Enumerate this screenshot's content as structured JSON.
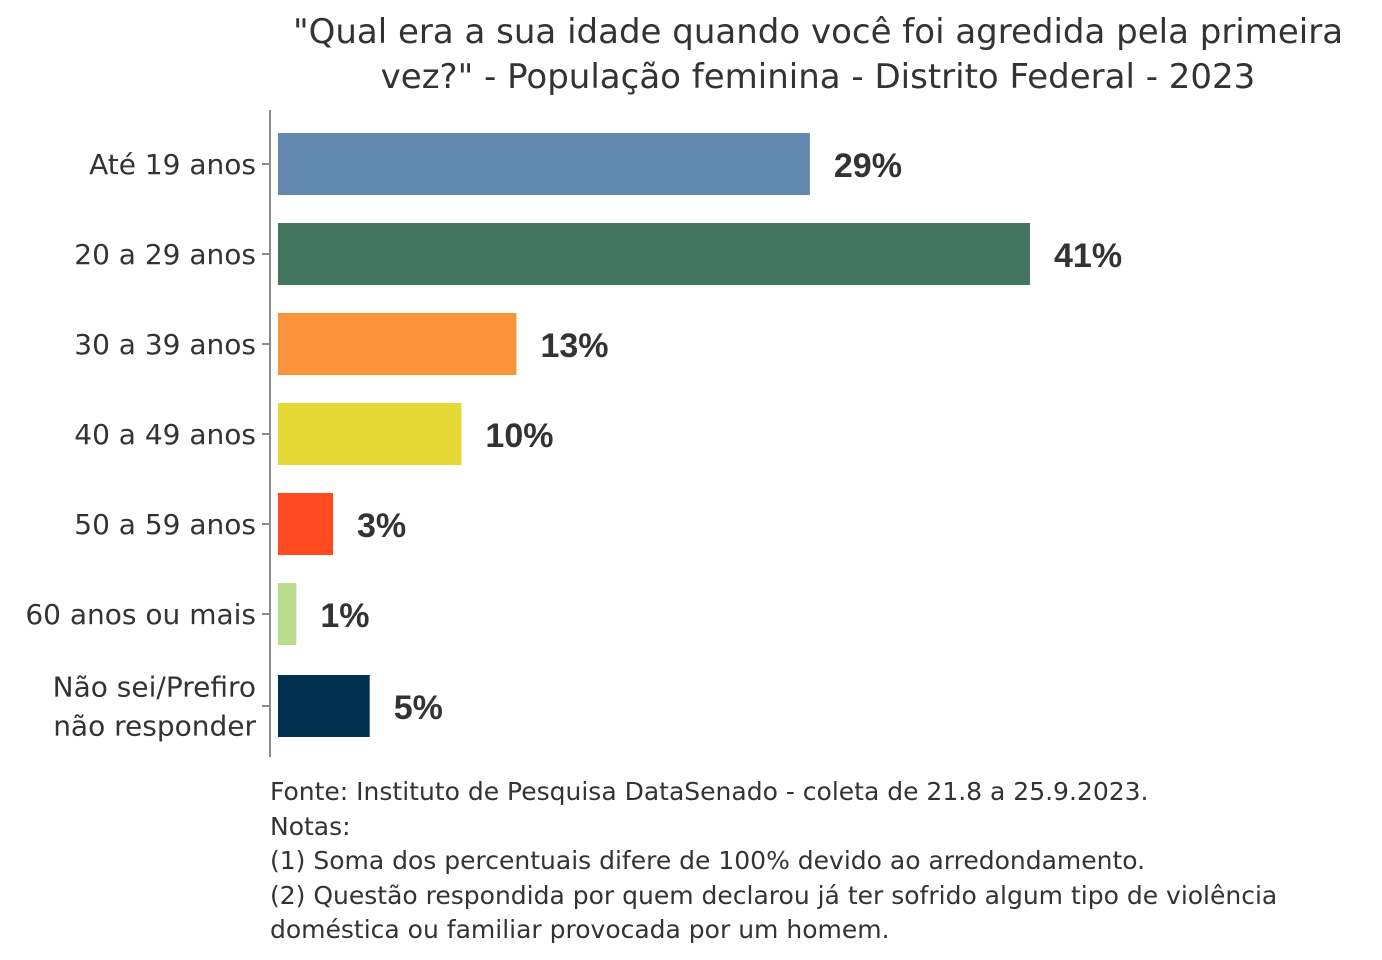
{
  "chart_data": {
    "type": "bar",
    "orientation": "horizontal",
    "title": [
      "\"Qual era a sua idade quando você foi agredida pela primeira",
      "vez?\" - População feminina - Distrito Federal - 2023"
    ],
    "categories": [
      [
        "Até 19 anos"
      ],
      [
        "20 a 29 anos"
      ],
      [
        "30 a 39 anos"
      ],
      [
        "40 a 49 anos"
      ],
      [
        "50 a 59 anos"
      ],
      [
        "60 anos ou mais"
      ],
      [
        "Não sei/Prefiro",
        "não responder"
      ]
    ],
    "values": [
      29,
      41,
      13,
      10,
      3,
      1,
      5
    ],
    "value_labels": [
      "29%",
      "41%",
      "13%",
      "10%",
      "3%",
      "1%",
      "5%"
    ],
    "colors": [
      "#6388b0",
      "#447561",
      "#fb933b",
      "#e5d935",
      "#fe4a21",
      "#b8dd8f",
      "#02304f"
    ],
    "xlim": [
      0,
      41
    ],
    "xlabel": "",
    "ylabel": "",
    "grid": false,
    "legend": "none"
  },
  "notes": {
    "source": "Fonte: Instituto de Pesquisa DataSenado - coleta de 21.8 a 25.9.2023.",
    "heading": "Notas:",
    "note1": "(1) Soma dos percentuais difere de 100% devido ao arredondamento.",
    "note2_line1": "(2) Questão respondida por quem declarou já ter sofrido algum tipo de violência",
    "note2_line2": "doméstica ou familiar provocada por um homem."
  }
}
